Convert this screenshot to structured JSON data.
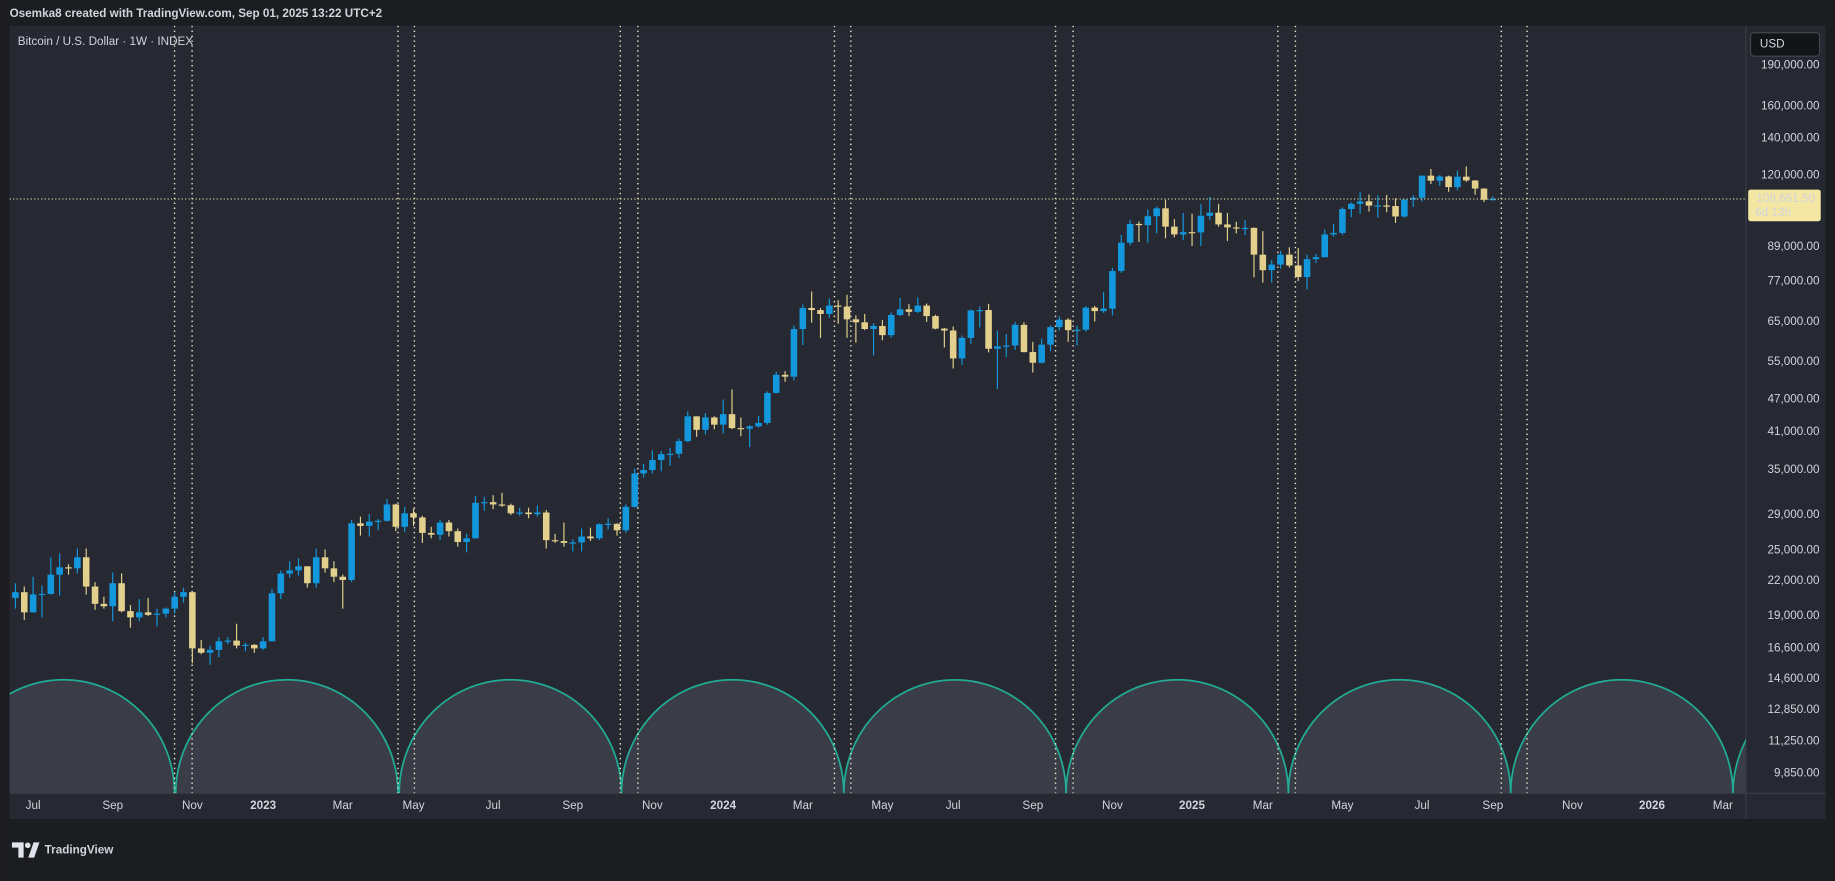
{
  "chart_data": {
    "type": "candlestick",
    "attribution": "Osemka8 created with TradingView.com, Sep 01, 2025 13:22 UTC+2",
    "title": "Bitcoin / U.S. Dollar · 1W · INDEX",
    "currency": "USD",
    "brand": "TradingView",
    "last_price_label": "108,661.50",
    "countdown": "6d 13h",
    "log_scale": true,
    "grid": false,
    "up_color": "#1398dd",
    "down_color": "#e3d08d",
    "ylim": [
      9060,
      224200
    ],
    "yticks": [
      {
        "value": 190000,
        "label": "190,000.00"
      },
      {
        "value": 160000,
        "label": "160,000.00"
      },
      {
        "value": 140000,
        "label": "140,000.00"
      },
      {
        "value": 120000,
        "label": "120,000.00"
      },
      {
        "value": 89000,
        "label": "89,000.00"
      },
      {
        "value": 77000,
        "label": "77,000.00"
      },
      {
        "value": 65000,
        "label": "65,000.00"
      },
      {
        "value": 55000,
        "label": "55,000.00"
      },
      {
        "value": 47000,
        "label": "47,000.00"
      },
      {
        "value": 41000,
        "label": "41,000.00"
      },
      {
        "value": 35000,
        "label": "35,000.00"
      },
      {
        "value": 29000,
        "label": "29,000.00"
      },
      {
        "value": 25000,
        "label": "25,000.00"
      },
      {
        "value": 22000,
        "label": "22,000.00"
      },
      {
        "value": 19000,
        "label": "19,000.00"
      },
      {
        "value": 16600,
        "label": "16,600.00"
      },
      {
        "value": 14600,
        "label": "14,600.00"
      },
      {
        "value": 12850,
        "label": "12,850.00"
      },
      {
        "value": 11250,
        "label": "11,250.00"
      },
      {
        "value": 9850,
        "label": "9,850.00"
      }
    ],
    "xlim": [
      -0.66,
      195.6
    ],
    "xticks": [
      {
        "value": 2,
        "label": "Jul"
      },
      {
        "value": 11,
        "label": "Sep"
      },
      {
        "value": 20,
        "label": "Nov"
      },
      {
        "value": 28,
        "label": "2023"
      },
      {
        "value": 37,
        "label": "Mar"
      },
      {
        "value": 45,
        "label": "May"
      },
      {
        "value": 54,
        "label": "Jul"
      },
      {
        "value": 63,
        "label": "Sep"
      },
      {
        "value": 72,
        "label": "Nov"
      },
      {
        "value": 80,
        "label": "2024"
      },
      {
        "value": 89,
        "label": "Mar"
      },
      {
        "value": 98,
        "label": "May"
      },
      {
        "value": 106,
        "label": "Jul"
      },
      {
        "value": 115,
        "label": "Sep"
      },
      {
        "value": 124,
        "label": "Nov"
      },
      {
        "value": 133,
        "label": "2025"
      },
      {
        "value": 141,
        "label": "Mar"
      },
      {
        "value": 150,
        "label": "May"
      },
      {
        "value": 159,
        "label": "Jul"
      },
      {
        "value": 167,
        "label": "Sep"
      },
      {
        "value": 176,
        "label": "Nov"
      },
      {
        "value": 185,
        "label": "2026"
      },
      {
        "value": 193,
        "label": "Mar"
      }
    ],
    "open": [
      20500,
      21000,
      19300,
      20800,
      20850,
      22600,
      23300,
      23200,
      24300,
      21500,
      20000,
      19800,
      21800,
      19400,
      18900,
      19300,
      19100,
      19200,
      19600,
      20600,
      21000,
      16600,
      16300,
      16500,
      17100,
      17150,
      16800,
      16850,
      16600,
      17100,
      20900,
      22700,
      23000,
      23400,
      21800,
      24300,
      23200,
      22400,
      22100,
      28000,
      27700,
      28200,
      28300,
      30300,
      27600,
      29200,
      28700,
      26900,
      26700,
      28100,
      27100,
      25900,
      26300,
      30500,
      30600,
      30300,
      30200,
      29200,
      29300,
      29100,
      29300,
      26100,
      26000,
      25800,
      25850,
      26500,
      26300,
      27900,
      27950,
      27200,
      30000,
      34500,
      35000,
      36500,
      37400,
      37450,
      39500,
      43800,
      41400,
      43600,
      42300,
      44200,
      41700,
      41600,
      42000,
      42600,
      48300,
      52100,
      51700,
      63100,
      68900,
      68300,
      67200,
      69600,
      69300,
      65700,
      64900,
      63100,
      63900,
      61500,
      66900,
      68500,
      67800,
      69600,
      66600,
      63200,
      62700,
      55800,
      60800,
      68200,
      68300,
      58100,
      58700,
      58900,
      64200,
      57300,
      54800,
      59100,
      63600,
      65600,
      62800,
      62900,
      69000,
      68000,
      68700,
      80400,
      90500,
      97900,
      97400,
      101100,
      104500,
      96800,
      93700,
      94600,
      94500,
      101300,
      102600,
      97700,
      96500,
      96100,
      96300,
      86100,
      80700,
      82600,
      86100,
      82300,
      78400,
      84500,
      85200,
      93700,
      94300,
      104200,
      106500,
      107600,
      105700,
      105750,
      105500,
      101000,
      108400,
      109200,
      119800,
      117300,
      119400,
      114200,
      119300,
      117400,
      113500,
      108300
    ],
    "high": [
      21800,
      21500,
      22400,
      21600,
      24300,
      24700,
      23600,
      25200,
      25200,
      21900,
      20600,
      22800,
      22700,
      19900,
      20400,
      20500,
      19600,
      19700,
      21000,
      21400,
      21000,
      17200,
      16800,
      17400,
      17400,
      18400,
      17000,
      16900,
      17400,
      21300,
      23000,
      23900,
      24200,
      23400,
      25200,
      25100,
      23900,
      22600,
      28400,
      28800,
      29100,
      28500,
      31000,
      30400,
      30000,
      29800,
      28900,
      27600,
      28400,
      28400,
      27400,
      26800,
      31400,
      31300,
      31500,
      31800,
      30400,
      29900,
      29900,
      30200,
      29600,
      26800,
      28100,
      26200,
      27400,
      27500,
      28000,
      28600,
      28000,
      30300,
      35200,
      35900,
      38000,
      37900,
      38400,
      39900,
      44700,
      43800,
      44400,
      43800,
      47000,
      49000,
      43600,
      42200,
      43900,
      48600,
      52800,
      52900,
      64000,
      69900,
      73800,
      68900,
      71700,
      71200,
      72800,
      66800,
      67200,
      64700,
      65500,
      67600,
      71900,
      70000,
      72000,
      70200,
      67000,
      63400,
      63800,
      61400,
      68400,
      69400,
      70100,
      62700,
      61800,
      65000,
      64900,
      59800,
      60600,
      64100,
      66500,
      66000,
      64000,
      69400,
      69500,
      73600,
      81500,
      93500,
      99600,
      98900,
      104000,
      105300,
      108300,
      99900,
      102500,
      102200,
      106300,
      109600,
      106500,
      102500,
      98800,
      99500,
      96500,
      95000,
      84100,
      87500,
      88800,
      88500,
      86100,
      86400,
      95600,
      97900,
      104900,
      107100,
      111900,
      110700,
      110400,
      110500,
      108900,
      108500,
      110500,
      119900,
      123200,
      120200,
      119800,
      122300,
      124500,
      117600,
      113600,
      109900
    ],
    "low": [
      19600,
      18700,
      19300,
      18900,
      20800,
      20700,
      22600,
      22700,
      20800,
      19500,
      19600,
      18600,
      19300,
      18100,
      18600,
      19000,
      18200,
      18900,
      19200,
      20100,
      15600,
      16200,
      15500,
      16000,
      16900,
      16600,
      16400,
      16300,
      16500,
      17100,
      20400,
      22300,
      22500,
      21400,
      21400,
      22800,
      21900,
      19600,
      21900,
      26600,
      26500,
      27200,
      28200,
      27100,
      27000,
      27700,
      25800,
      26300,
      26100,
      26500,
      25400,
      24800,
      26300,
      29500,
      29700,
      30000,
      29000,
      28900,
      28600,
      28800,
      25200,
      25800,
      25400,
      24900,
      24900,
      26000,
      26100,
      27300,
      26600,
      26900,
      29900,
      33900,
      34500,
      34800,
      35600,
      36800,
      39300,
      40200,
      40600,
      41500,
      40800,
      41500,
      40300,
      38500,
      41800,
      42300,
      48200,
      50600,
      50900,
      59000,
      64800,
      60800,
      66100,
      64500,
      60800,
      59600,
      62800,
      56500,
      60200,
      60800,
      66600,
      66600,
      67500,
      65000,
      63000,
      58400,
      53500,
      54300,
      59300,
      63500,
      57200,
      49100,
      56100,
      57800,
      57200,
      52600,
      54600,
      57500,
      62700,
      59800,
      58900,
      62400,
      65100,
      67500,
      66800,
      79800,
      89400,
      90800,
      90500,
      94200,
      92200,
      92600,
      91500,
      89300,
      89300,
      99600,
      96800,
      91200,
      94100,
      93400,
      78300,
      76600,
      76600,
      81200,
      81600,
      77100,
      74500,
      83100,
      85100,
      92900,
      93500,
      100700,
      102100,
      103100,
      100400,
      102800,
      98300,
      100400,
      105100,
      107600,
      115700,
      114700,
      112000,
      112700,
      116800,
      110600,
      107300,
      107900
    ],
    "close": [
      21000,
      19300,
      20800,
      20850,
      22600,
      23300,
      23200,
      24300,
      21500,
      20000,
      19800,
      21800,
      19400,
      18900,
      19300,
      19100,
      19200,
      19600,
      20600,
      21000,
      16600,
      16300,
      16500,
      17100,
      17150,
      16800,
      16850,
      16600,
      17100,
      20900,
      22700,
      23000,
      23400,
      21800,
      24300,
      23200,
      22400,
      22100,
      28000,
      27700,
      28200,
      28300,
      30300,
      27600,
      29200,
      28700,
      26900,
      26700,
      28100,
      27100,
      25900,
      26300,
      30500,
      30600,
      30300,
      30200,
      29200,
      29300,
      29100,
      29300,
      26100,
      26000,
      25800,
      25850,
      26500,
      26300,
      27900,
      27950,
      27200,
      30000,
      34500,
      35000,
      36500,
      37400,
      37450,
      39500,
      43800,
      41400,
      43600,
      42300,
      44200,
      41700,
      41600,
      42000,
      42600,
      48300,
      52100,
      51700,
      63100,
      68900,
      68300,
      67200,
      69600,
      69300,
      65700,
      64900,
      63100,
      63900,
      61500,
      66900,
      68500,
      67800,
      69600,
      66600,
      63200,
      62700,
      55800,
      60800,
      68200,
      68300,
      58100,
      58700,
      58900,
      64200,
      57300,
      54800,
      59100,
      63600,
      65600,
      62800,
      62900,
      69000,
      68000,
      68700,
      80400,
      90500,
      97900,
      97400,
      101100,
      104500,
      96800,
      93700,
      94600,
      94500,
      101300,
      102600,
      97700,
      96500,
      96100,
      96300,
      86100,
      80700,
      82600,
      86100,
      82300,
      78400,
      84500,
      85200,
      93700,
      94300,
      104200,
      106500,
      107600,
      105700,
      105750,
      105500,
      101000,
      108400,
      109200,
      119800,
      117300,
      119400,
      114200,
      119300,
      117400,
      113500,
      108300,
      108661.5
    ]
  }
}
